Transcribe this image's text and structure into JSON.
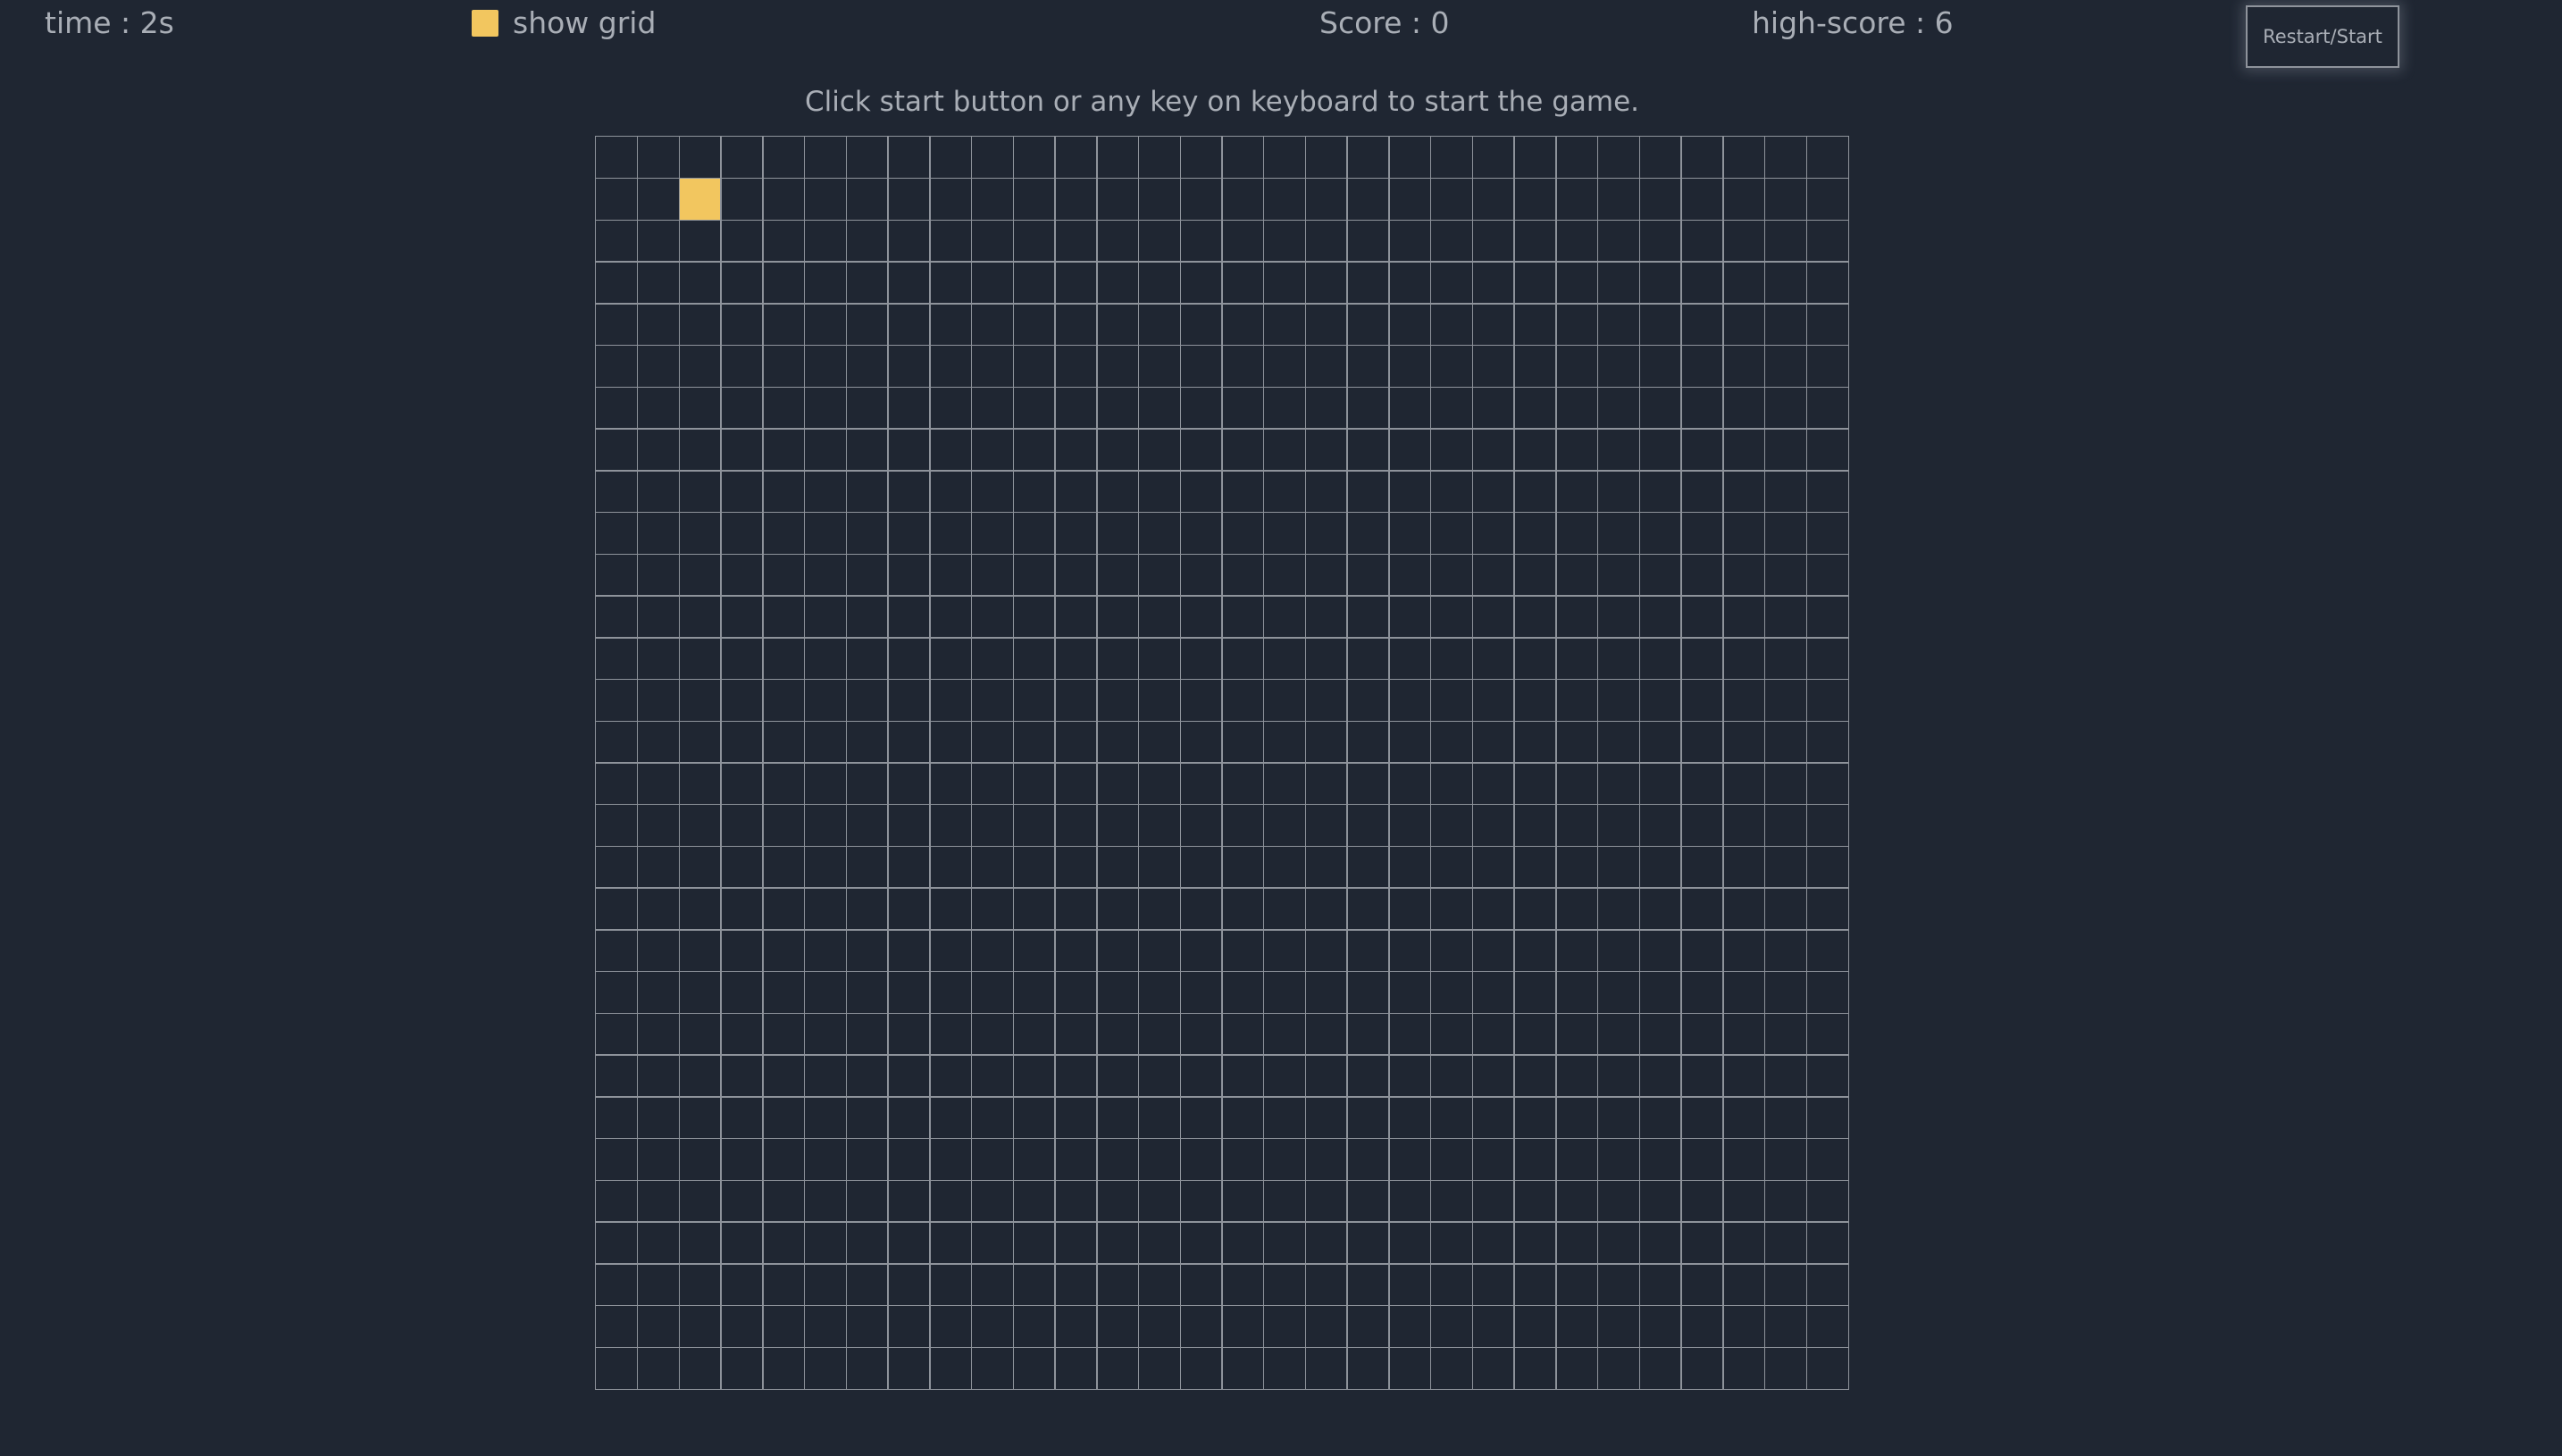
{
  "hud": {
    "time_label": "time : 2s",
    "show_grid_label": "show grid",
    "show_grid_checked": true,
    "score_label": "Score : 0",
    "high_score_label": "high-score : 6",
    "restart_label": "Restart/Start"
  },
  "instructions": "Click start button or any key on keyboard to start the game.",
  "board": {
    "columns": 30,
    "rows": 30,
    "food_cell": {
      "col": 2,
      "row": 1
    },
    "grid_line_color": "#8e939b",
    "food_color": "#f2c65f",
    "background_color": "#1f2632"
  }
}
